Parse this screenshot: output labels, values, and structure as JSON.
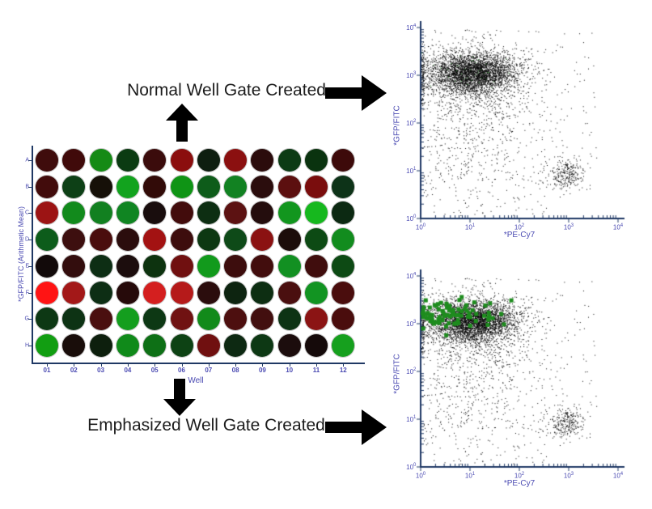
{
  "colors": {
    "background": "#FFFFFF",
    "axis": "#1F3864",
    "tick_label": "#4A4AB2",
    "arrow": "#000000",
    "headline_text": "#1C1C1C",
    "point": "#000000",
    "emphasized_marker": "#1E8C1E",
    "green_dot": "#1F7A1F"
  },
  "annotations": {
    "normal_label": "Normal Well Gate Created",
    "emphasized_label": "Emphasized Well Gate Created"
  },
  "chart_data": [
    {
      "id": "well-plate-heatmap",
      "type": "heatmap",
      "xlabel": "Well",
      "ylabel": "*GFP/FITC (Arithmetic Mean)",
      "rows": [
        "A",
        "B",
        "C",
        "D",
        "E",
        "F",
        "G",
        "H"
      ],
      "columns": [
        "01",
        "02",
        "03",
        "04",
        "05",
        "06",
        "07",
        "08",
        "09",
        "10",
        "11",
        "12"
      ],
      "well_colors": [
        [
          "#3F0C0C",
          "#400A0A",
          "#158A15",
          "#0B3B12",
          "#3B0C0C",
          "#8B0E0E",
          "#0E1E10",
          "#8B1010",
          "#2B0C0C",
          "#0C3B14",
          "#0A330F",
          "#3D0A0A"
        ],
        [
          "#420C0C",
          "#0D4016",
          "#161008",
          "#12A31E",
          "#320B08",
          "#0F9415",
          "#0E5C1A",
          "#128222",
          "#2B0D0D",
          "#5C0F0F",
          "#7A0D0D",
          "#0D3318"
        ],
        [
          "#9C1414",
          "#128A1C",
          "#128020",
          "#108522",
          "#190D0D",
          "#420C0C",
          "#0D2E12",
          "#5C1212",
          "#240D0D",
          "#12961E",
          "#16B81E",
          "#0C2912"
        ],
        [
          "#0D5C1B",
          "#3D0F0F",
          "#4A0D0D",
          "#2B0D0D",
          "#A31212",
          "#3D0D0D",
          "#0D3812",
          "#0E4A18",
          "#8B1212",
          "#1C0D0A",
          "#0D4A14",
          "#128C1E"
        ],
        [
          "#120A0A",
          "#330D0D",
          "#0D2E14",
          "#1C0D0D",
          "#0D330F",
          "#701010",
          "#129A1C",
          "#3D0D0D",
          "#420D0D",
          "#129022",
          "#400D0D",
          "#0D4A14"
        ],
        [
          "#FF1414",
          "#A31818",
          "#0D2E14",
          "#260A0A",
          "#D41F1F",
          "#B51A1A",
          "#2B0D0D",
          "#0D2410",
          "#0D2E12",
          "#4A0F0F",
          "#129422",
          "#4A0D0D"
        ],
        [
          "#0D3814",
          "#0D3314",
          "#4A0F0F",
          "#149E1E",
          "#0D3814",
          "#701212",
          "#128A1A",
          "#4D0F0F",
          "#420F0F",
          "#0D3314",
          "#8B1414",
          "#4A0D0D"
        ],
        [
          "#129E12",
          "#190D0A",
          "#0D1F0D",
          "#108A1A",
          "#0E7016",
          "#0D4214",
          "#701010",
          "#0D2912",
          "#0D3814",
          "#1C0D0D",
          "#150A0A",
          "#16A01E"
        ]
      ]
    },
    {
      "id": "scatter-normal-gate",
      "type": "scatter",
      "xlabel": "*PE-Cy7",
      "ylabel": "*GFP/FITC",
      "xscale": "log",
      "yscale": "log",
      "xlim_decades": [
        0,
        4
      ],
      "ylim_decades": [
        0,
        4
      ],
      "tick_base": "10",
      "tick_exponents": [
        0,
        1,
        2,
        3,
        4
      ],
      "clusters": [
        {
          "name": "gfp-positive-main",
          "dist": "gauss",
          "n": 3000,
          "cx": 1.05,
          "cy": 3.05,
          "sx": 0.45,
          "sy": 0.2,
          "color": "#000000",
          "size": 1,
          "seed": 11
        },
        {
          "name": "gfp-positive-halo",
          "dist": "gauss",
          "n": 900,
          "cx": 1.0,
          "cy": 2.95,
          "sx": 0.62,
          "sy": 0.42,
          "color": "#000000",
          "size": 1,
          "seed": 12
        },
        {
          "name": "pecy7-positive",
          "dist": "gauss",
          "n": 270,
          "cx": 2.92,
          "cy": 0.92,
          "sx": 0.2,
          "sy": 0.17,
          "color": "#000000",
          "size": 1,
          "seed": 13
        },
        {
          "name": "mid-column",
          "dist": "uniform",
          "n": 250,
          "x0": 0.3,
          "x1": 1.9,
          "y0": 0.8,
          "y1": 2.8,
          "color": "#000000",
          "size": 1,
          "seed": 14
        },
        {
          "name": "background",
          "dist": "uniform",
          "n": 450,
          "x0": 0.02,
          "x1": 2.6,
          "y0": 0.05,
          "y1": 3.6,
          "color": "#000000",
          "size": 1,
          "seed": 15
        },
        {
          "name": "right-sparse",
          "dist": "uniform",
          "n": 60,
          "x0": 2.55,
          "x1": 3.6,
          "y0": 0.9,
          "y1": 3.7,
          "color": "#000000",
          "size": 1,
          "seed": 16
        },
        {
          "name": "top-edge",
          "dist": "uniform",
          "n": 6,
          "x0": 1.8,
          "x1": 3.9,
          "y0": 3.85,
          "y1": 3.95,
          "color": "#000000",
          "size": 1,
          "seed": 17
        },
        {
          "name": "green-sprinkle",
          "dist": "gauss",
          "n": 40,
          "cx": 1.0,
          "cy": 3.05,
          "sx": 0.42,
          "sy": 0.2,
          "color": "#1F7A1F",
          "size": 1,
          "seed": 18
        }
      ]
    },
    {
      "id": "scatter-emphasized-gate",
      "type": "scatter",
      "xlabel": "*PE-Cy7",
      "ylabel": "*GFP/FITC",
      "xscale": "log",
      "yscale": "log",
      "xlim_decades": [
        0,
        4
      ],
      "ylim_decades": [
        0,
        4
      ],
      "tick_base": "10",
      "tick_exponents": [
        0,
        1,
        2,
        3,
        4
      ],
      "clusters": [
        {
          "name": "gfp-positive-main",
          "dist": "gauss",
          "n": 3000,
          "cx": 1.05,
          "cy": 3.05,
          "sx": 0.45,
          "sy": 0.2,
          "color": "#000000",
          "size": 1,
          "seed": 11
        },
        {
          "name": "gfp-positive-halo",
          "dist": "gauss",
          "n": 900,
          "cx": 1.0,
          "cy": 2.95,
          "sx": 0.62,
          "sy": 0.42,
          "color": "#000000",
          "size": 1,
          "seed": 12
        },
        {
          "name": "pecy7-positive",
          "dist": "gauss",
          "n": 270,
          "cx": 2.92,
          "cy": 0.92,
          "sx": 0.2,
          "sy": 0.17,
          "color": "#000000",
          "size": 1,
          "seed": 13
        },
        {
          "name": "mid-column",
          "dist": "uniform",
          "n": 250,
          "x0": 0.3,
          "x1": 1.9,
          "y0": 0.8,
          "y1": 2.8,
          "color": "#000000",
          "size": 1,
          "seed": 14
        },
        {
          "name": "background",
          "dist": "uniform",
          "n": 450,
          "x0": 0.02,
          "x1": 2.6,
          "y0": 0.05,
          "y1": 3.6,
          "color": "#000000",
          "size": 1,
          "seed": 15
        },
        {
          "name": "right-sparse",
          "dist": "uniform",
          "n": 60,
          "x0": 2.55,
          "x1": 3.6,
          "y0": 0.9,
          "y1": 3.7,
          "color": "#000000",
          "size": 1,
          "seed": 16
        },
        {
          "name": "top-edge",
          "dist": "uniform",
          "n": 6,
          "x0": 1.8,
          "x1": 3.9,
          "y0": 3.85,
          "y1": 3.95,
          "color": "#000000",
          "size": 1,
          "seed": 17
        },
        {
          "name": "emphasized-well-events",
          "dist": "gauss",
          "n": 88,
          "cx": 0.55,
          "cy": 3.2,
          "sx": 0.45,
          "sy": 0.17,
          "color": "#1E8C1E",
          "size": 5,
          "seed": 77
        }
      ]
    }
  ]
}
